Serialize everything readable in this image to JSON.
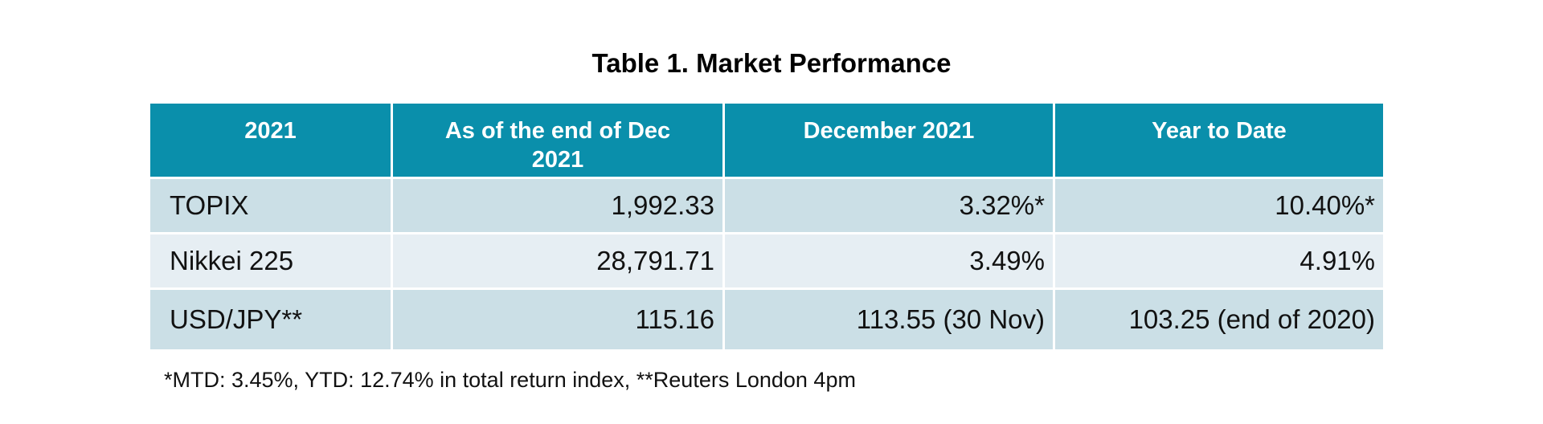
{
  "title": "Table 1. Market Performance",
  "table": {
    "header": [
      "2021",
      "As of the end of Dec 2021",
      "December 2021",
      "Year to Date"
    ],
    "rows": [
      [
        "TOPIX",
        "1,992.33",
        "3.32%*",
        "10.40%*"
      ],
      [
        "Nikkei 225",
        "28,791.71",
        "3.49%",
        "4.91%"
      ],
      [
        "USD/JPY**",
        "115.16",
        "113.55 (30 Nov)",
        "103.25 (end of 2020)"
      ]
    ]
  },
  "footnote": "*MTD: 3.45%, YTD: 12.74% in total return index, **Reuters London 4pm"
}
